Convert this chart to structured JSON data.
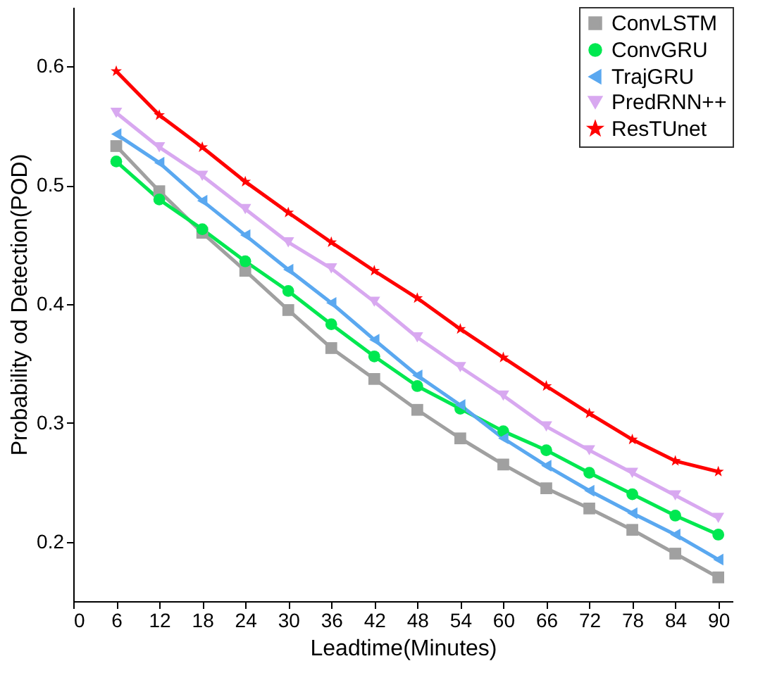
{
  "chart_data": {
    "type": "line",
    "xlabel": "Leadtime(Minutes)",
    "ylabel": "Probability od Detection(POD)",
    "x": [
      6,
      12,
      18,
      24,
      30,
      36,
      42,
      48,
      54,
      60,
      66,
      72,
      78,
      84,
      90
    ],
    "xlim": [
      0,
      92
    ],
    "xticks": [
      0,
      6,
      12,
      18,
      24,
      30,
      36,
      42,
      48,
      54,
      60,
      66,
      72,
      78,
      84,
      90
    ],
    "ylim": [
      0.15,
      0.65
    ],
    "yticks": [
      0.2,
      0.3,
      0.4,
      0.5,
      0.6
    ],
    "grid": false,
    "legend": "top right",
    "series": [
      {
        "name": "ConvLSTM",
        "color": "#a0a0a0",
        "marker": "square",
        "values": [
          0.533,
          0.495,
          0.46,
          0.428,
          0.395,
          0.363,
          0.337,
          0.311,
          0.287,
          0.265,
          0.245,
          0.228,
          0.21,
          0.19,
          0.17
        ]
      },
      {
        "name": "ConvGRU",
        "color": "#00e850",
        "marker": "circle",
        "values": [
          0.52,
          0.488,
          0.463,
          0.436,
          0.411,
          0.383,
          0.356,
          0.331,
          0.312,
          0.293,
          0.277,
          0.258,
          0.24,
          0.222,
          0.206
        ]
      },
      {
        "name": "TrajGRU",
        "color": "#5aa8f0",
        "marker": "triangle-left",
        "values": [
          0.543,
          0.519,
          0.487,
          0.458,
          0.429,
          0.401,
          0.37,
          0.34,
          0.315,
          0.287,
          0.264,
          0.243,
          0.224,
          0.206,
          0.185
        ]
      },
      {
        "name": "PredRNN++",
        "color": "#d8a8f0",
        "marker": "triangle-down",
        "values": [
          0.561,
          0.532,
          0.508,
          0.48,
          0.452,
          0.43,
          0.402,
          0.372,
          0.347,
          0.323,
          0.297,
          0.277,
          0.258,
          0.239,
          0.22
        ]
      },
      {
        "name": "ResTUnet",
        "color": "#ff0000",
        "marker": "star",
        "values": [
          0.596,
          0.559,
          0.532,
          0.503,
          0.477,
          0.452,
          0.428,
          0.405,
          0.379,
          0.355,
          0.331,
          0.308,
          0.286,
          0.268,
          0.259
        ]
      }
    ]
  }
}
